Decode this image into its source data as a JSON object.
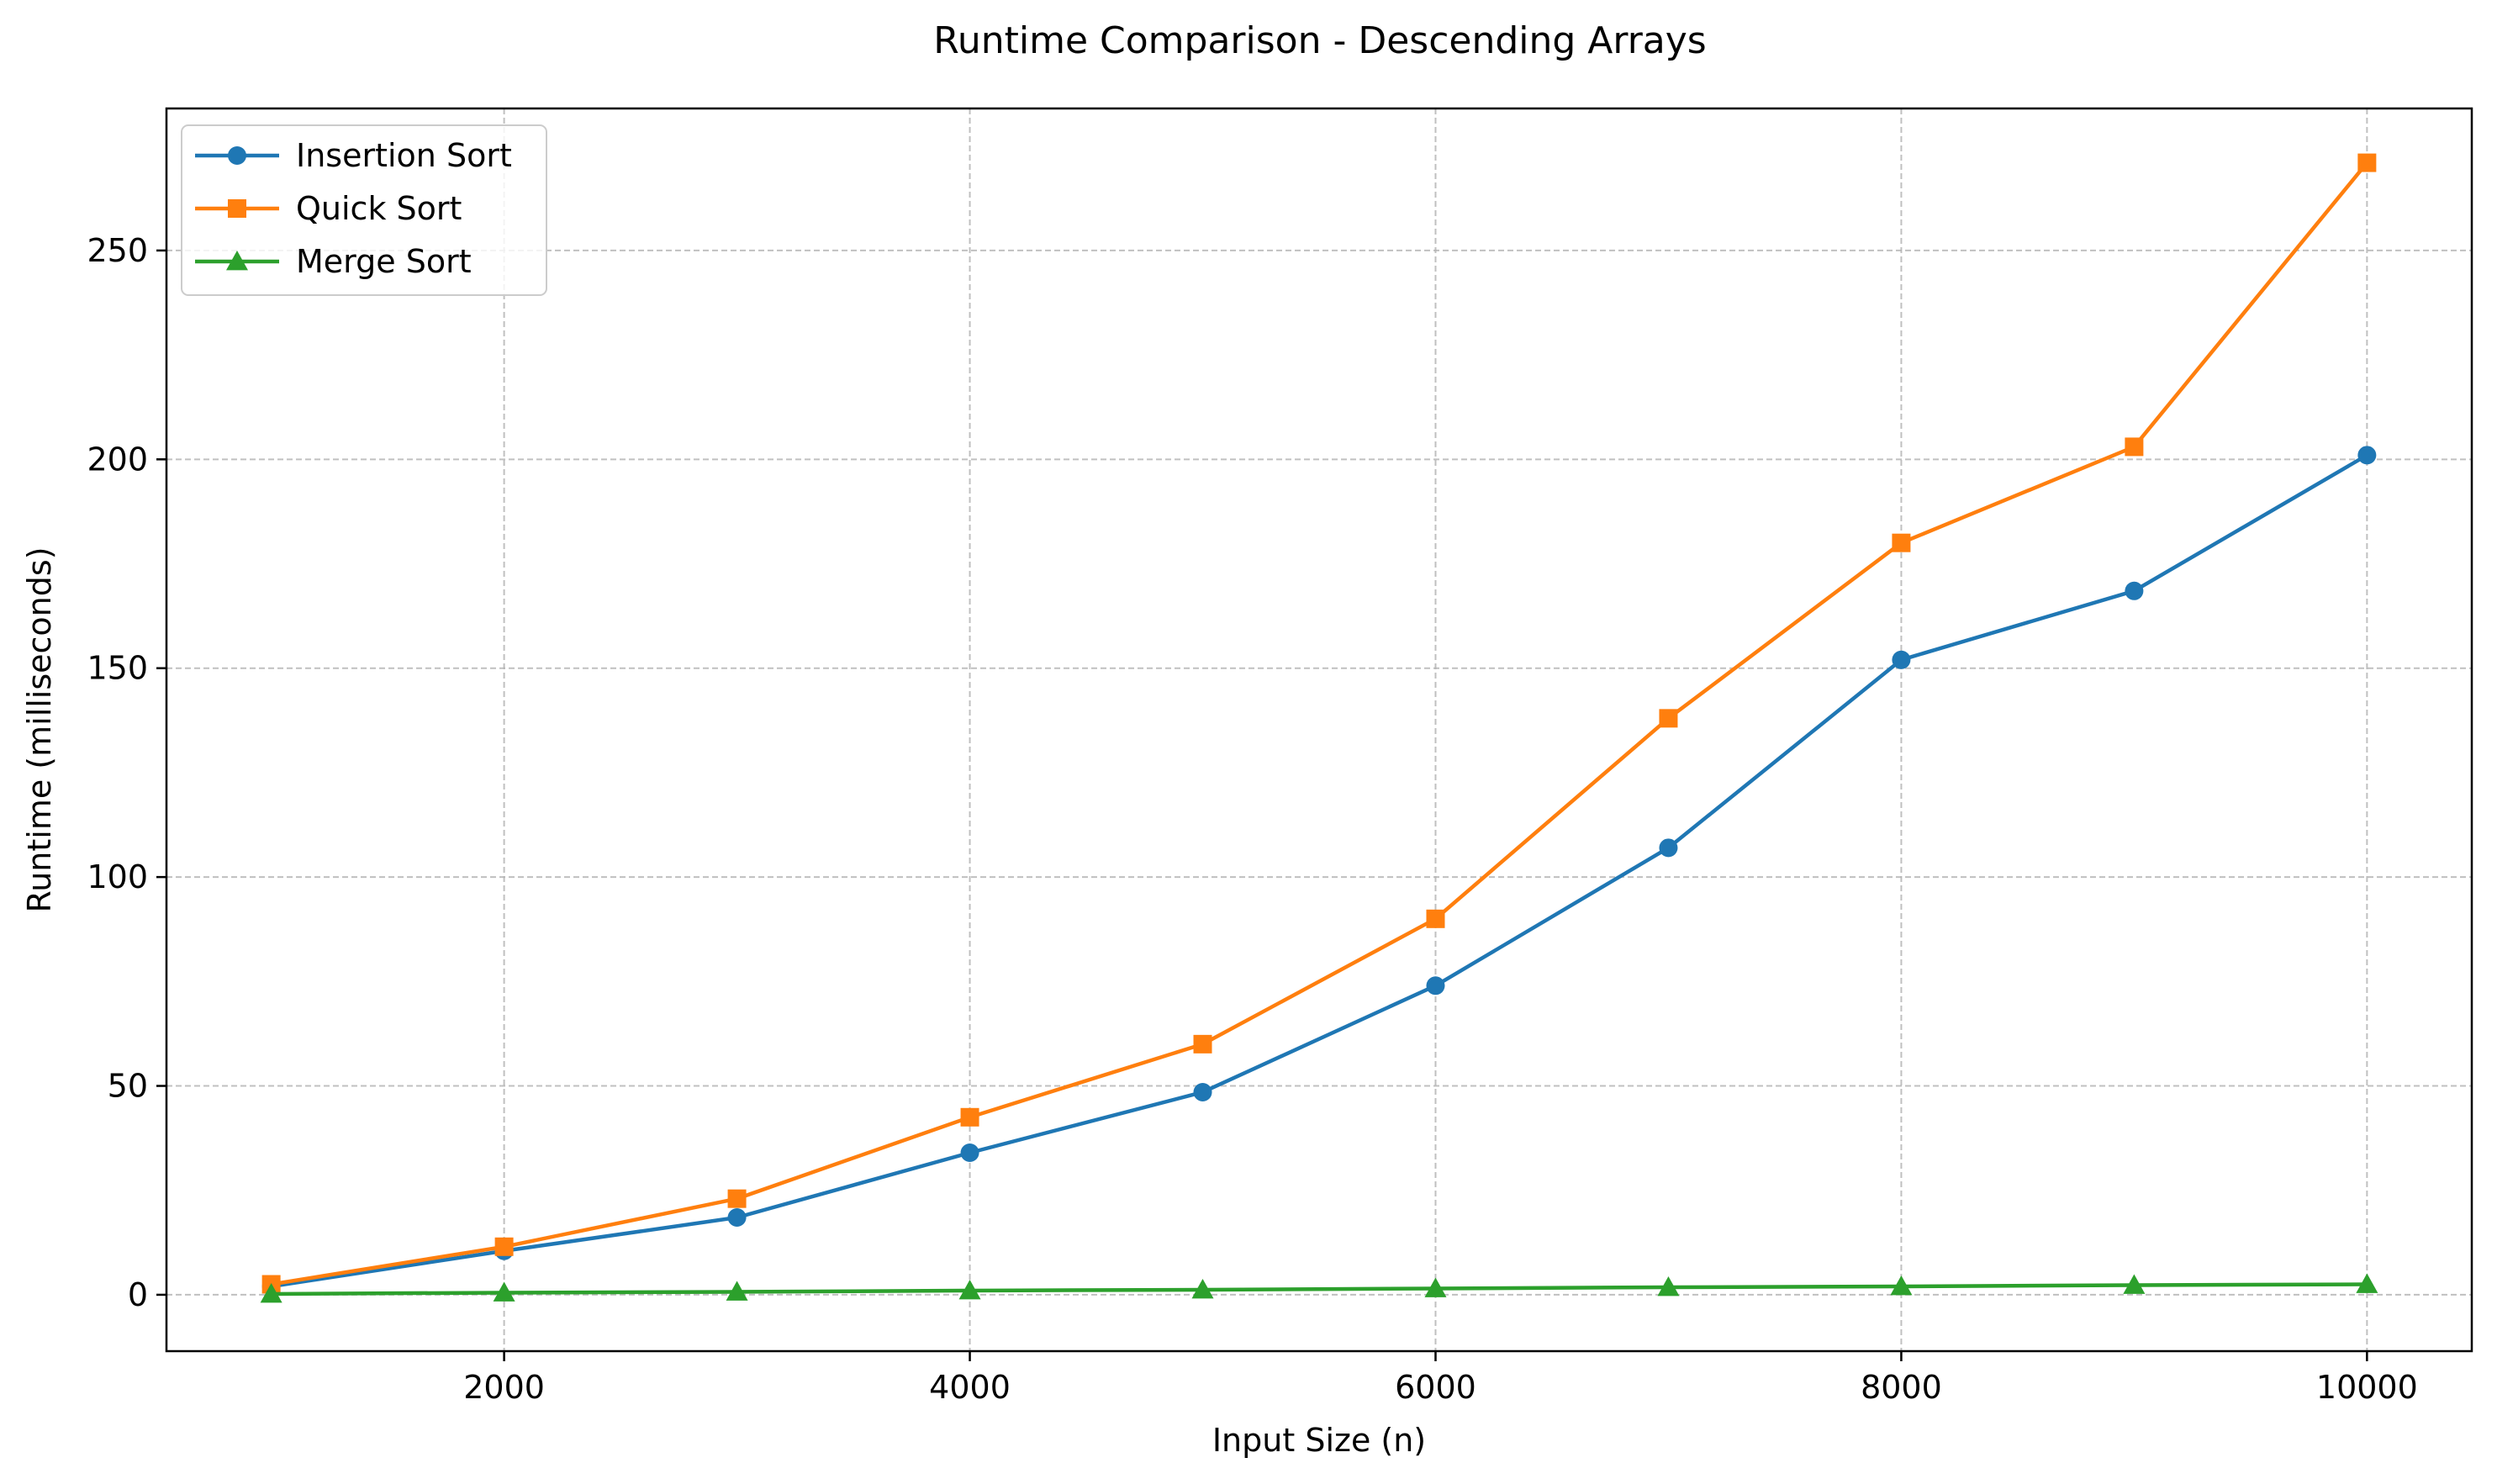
{
  "chart_data": {
    "type": "line",
    "title": "Runtime Comparison - Descending Arrays",
    "xlabel": "Input Size (n)",
    "ylabel": "Runtime (milliseconds)",
    "x": [
      1000,
      2000,
      3000,
      4000,
      5000,
      6000,
      7000,
      8000,
      9000,
      10000
    ],
    "xlim": [
      550,
      10450
    ],
    "ylim": [
      -13.5,
      284
    ],
    "xticks": [
      2000,
      4000,
      6000,
      8000,
      10000
    ],
    "xtick_labels": [
      "2000",
      "4000",
      "6000",
      "8000",
      "10000"
    ],
    "yticks": [
      0,
      50,
      100,
      150,
      200,
      250
    ],
    "ytick_labels": [
      "0",
      "50",
      "100",
      "150",
      "200",
      "250"
    ],
    "grid": true,
    "legend_position": "top-left",
    "series": [
      {
        "name": "Insertion Sort",
        "color": "#1f77b4",
        "marker": "circle",
        "values": [
          2,
          10.5,
          18.5,
          34,
          48.5,
          74,
          107,
          152,
          168.5,
          201
        ]
      },
      {
        "name": "Quick Sort",
        "color": "#ff7f0e",
        "marker": "square",
        "values": [
          2.5,
          11.5,
          23,
          42.5,
          60,
          90,
          138,
          180,
          203,
          271
        ]
      },
      {
        "name": "Merge Sort",
        "color": "#2ca02c",
        "marker": "triangle",
        "values": [
          0.2,
          0.5,
          0.7,
          1.0,
          1.2,
          1.5,
          1.8,
          2.0,
          2.3,
          2.5
        ]
      }
    ]
  }
}
